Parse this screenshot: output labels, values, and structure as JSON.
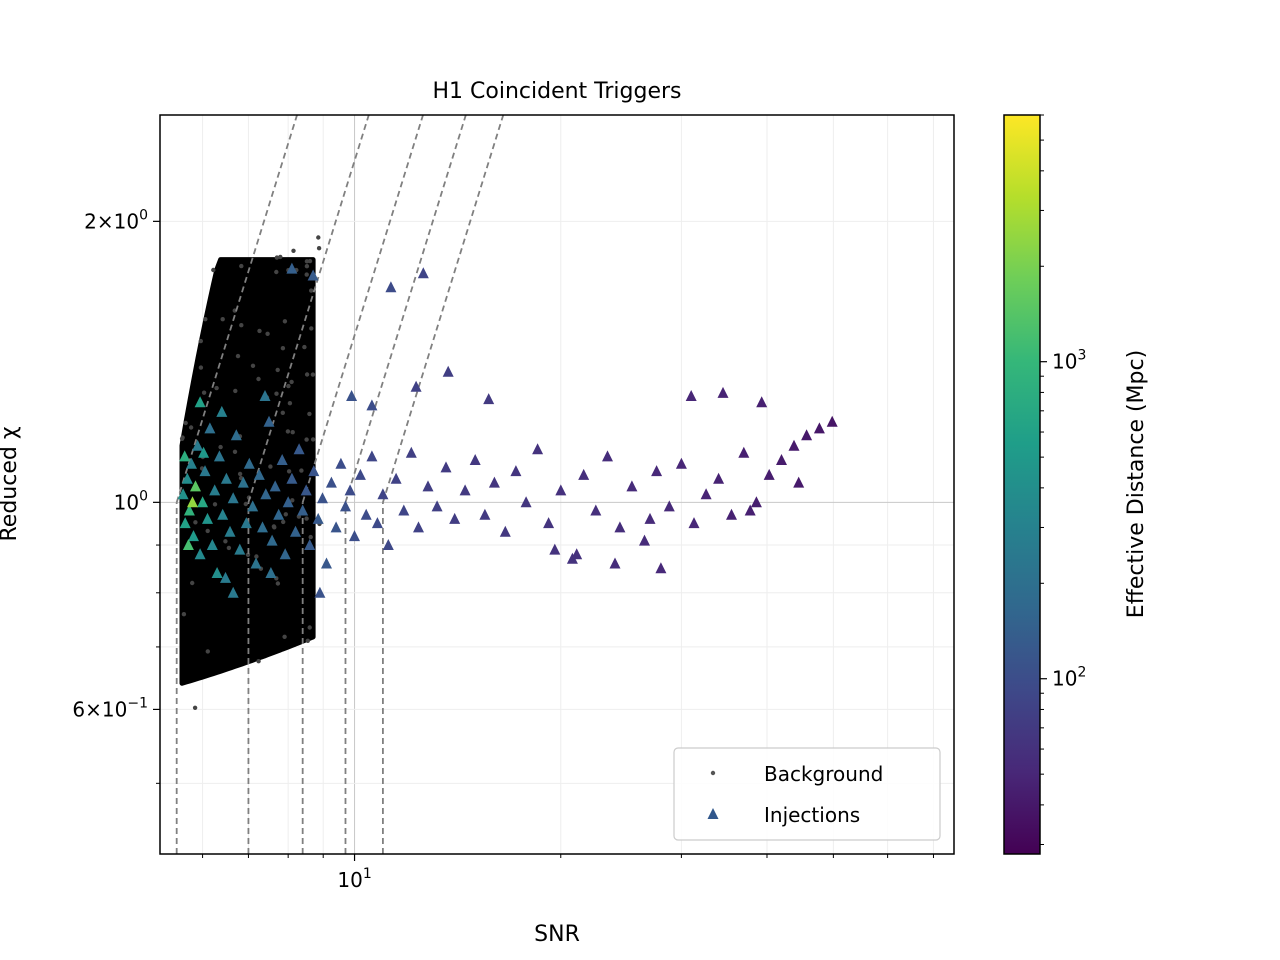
{
  "chart_data": {
    "type": "scatter",
    "title": "H1 Coincident Triggers",
    "xlabel": "SNR",
    "ylabel": "Reduced χ",
    "x_scale": "log",
    "y_scale": "log",
    "xlim": [
      5.2,
      75
    ],
    "ylim": [
      0.42,
      2.6
    ],
    "x_tick_labels": [
      {
        "value": 10,
        "base": "10",
        "exp": "1"
      }
    ],
    "y_tick_labels": [
      {
        "value": 2.0,
        "mant": "2",
        "base": "10",
        "exp": "0"
      },
      {
        "value": 1.0,
        "mant": "",
        "base": "10",
        "exp": "0"
      },
      {
        "value": 0.6,
        "mant": "6",
        "base": "10",
        "exp": "−1"
      }
    ],
    "grid": true,
    "legend_placement": "lower-right",
    "legend": [
      {
        "label": "Background",
        "marker": "dot",
        "color": "#555555"
      },
      {
        "label": "Injections",
        "marker": "triangle",
        "color": "#31578c"
      }
    ],
    "colorbar": {
      "label": "Effective Distance (Mpc)",
      "scale": "log",
      "range": [
        28,
        6000
      ],
      "colormap": [
        "#440154",
        "#482878",
        "#3e4989",
        "#31688e",
        "#26828e",
        "#1f9e89",
        "#35b779",
        "#6ece58",
        "#b5de2b",
        "#fde725"
      ],
      "tick_labels": [
        {
          "value": 100,
          "base": "10",
          "exp": "2"
        },
        {
          "value": 1000,
          "base": "10",
          "exp": "3"
        }
      ]
    },
    "thresholds": {
      "snr_verticals": [
        5.5,
        7.0,
        8.4,
        9.7,
        11.0
      ],
      "reference_y": 1.0
    },
    "background": {
      "snr_range": [
        5.6,
        8.7
      ],
      "chi_range": [
        0.64,
        1.82
      ],
      "color": "#000000"
    },
    "injections": [
      [
        5.62,
        1.02,
        420
      ],
      [
        5.66,
        0.95,
        600
      ],
      [
        5.7,
        1.06,
        380
      ],
      [
        5.74,
        0.98,
        900
      ],
      [
        5.78,
        1.1,
        300
      ],
      [
        5.82,
        0.92,
        520
      ],
      [
        5.86,
        1.04,
        1500
      ],
      [
        5.9,
        1.15,
        260
      ],
      [
        5.95,
        0.88,
        350
      ],
      [
        6.0,
        1.0,
        700
      ],
      [
        6.05,
        1.08,
        240
      ],
      [
        6.1,
        0.96,
        450
      ],
      [
        6.15,
        1.2,
        200
      ],
      [
        6.2,
        0.9,
        330
      ],
      [
        6.25,
        1.03,
        280
      ],
      [
        6.3,
        0.84,
        400
      ],
      [
        6.35,
        1.12,
        220
      ],
      [
        6.42,
        0.97,
        310
      ],
      [
        6.5,
        1.06,
        250
      ],
      [
        6.58,
        0.93,
        270
      ],
      [
        6.65,
        1.01,
        230
      ],
      [
        6.72,
        1.18,
        190
      ],
      [
        6.8,
        0.89,
        260
      ],
      [
        6.88,
        1.05,
        210
      ],
      [
        6.95,
        0.95,
        240
      ],
      [
        7.02,
        1.1,
        180
      ],
      [
        7.1,
        0.99,
        200
      ],
      [
        7.18,
        0.86,
        220
      ],
      [
        7.26,
        1.07,
        170
      ],
      [
        7.34,
        0.94,
        190
      ],
      [
        7.42,
        1.02,
        160
      ],
      [
        7.5,
        1.22,
        150
      ],
      [
        7.58,
        0.91,
        175
      ],
      [
        7.66,
        1.04,
        150
      ],
      [
        7.75,
        0.97,
        165
      ],
      [
        7.84,
        1.11,
        140
      ],
      [
        7.92,
        0.88,
        160
      ],
      [
        8.0,
        1.0,
        145
      ],
      [
        8.1,
        1.06,
        130
      ],
      [
        8.2,
        0.93,
        150
      ],
      [
        8.3,
        1.14,
        125
      ],
      [
        8.4,
        0.98,
        140
      ],
      [
        8.5,
        1.03,
        120
      ],
      [
        8.6,
        0.9,
        130
      ],
      [
        8.72,
        1.08,
        115
      ],
      [
        8.85,
        0.96,
        125
      ],
      [
        8.98,
        1.01,
        110
      ],
      [
        9.1,
        0.86,
        120
      ],
      [
        9.25,
        1.05,
        105
      ],
      [
        9.4,
        0.94,
        115
      ],
      [
        9.55,
        1.1,
        100
      ],
      [
        9.7,
        0.99,
        108
      ],
      [
        9.85,
        1.03,
        95
      ],
      [
        10.0,
        0.92,
        102
      ],
      [
        10.2,
        1.07,
        92
      ],
      [
        10.4,
        0.97,
        98
      ],
      [
        10.6,
        1.12,
        88
      ],
      [
        10.8,
        0.95,
        94
      ],
      [
        11.0,
        1.02,
        85
      ],
      [
        11.2,
        0.9,
        90
      ],
      [
        11.5,
        1.06,
        82
      ],
      [
        11.8,
        0.98,
        86
      ],
      [
        12.1,
        1.13,
        78
      ],
      [
        12.4,
        0.94,
        82
      ],
      [
        12.8,
        1.04,
        75
      ],
      [
        13.2,
        0.99,
        78
      ],
      [
        13.6,
        1.09,
        72
      ],
      [
        14.0,
        0.96,
        74
      ],
      [
        14.5,
        1.03,
        70
      ],
      [
        15.0,
        1.11,
        68
      ],
      [
        15.5,
        0.97,
        70
      ],
      [
        16.0,
        1.05,
        66
      ],
      [
        16.6,
        0.93,
        68
      ],
      [
        17.2,
        1.08,
        64
      ],
      [
        17.8,
        1.0,
        65
      ],
      [
        18.5,
        1.14,
        62
      ],
      [
        19.2,
        0.95,
        63
      ],
      [
        20.0,
        1.03,
        60
      ],
      [
        20.8,
        0.87,
        62
      ],
      [
        21.6,
        1.07,
        58
      ],
      [
        22.5,
        0.98,
        59
      ],
      [
        23.4,
        1.12,
        56
      ],
      [
        24.4,
        0.94,
        57
      ],
      [
        25.4,
        1.04,
        54
      ],
      [
        26.5,
        0.91,
        55
      ],
      [
        27.6,
        1.08,
        52
      ],
      [
        28.8,
        0.99,
        53
      ],
      [
        30.0,
        1.1,
        50
      ],
      [
        31.3,
        0.95,
        51
      ],
      [
        32.6,
        1.02,
        48
      ],
      [
        34.0,
        1.06,
        47
      ],
      [
        35.5,
        0.97,
        46
      ],
      [
        37.0,
        1.13,
        45
      ],
      [
        38.6,
        1.0,
        44
      ],
      [
        40.3,
        1.07,
        43
      ],
      [
        42.0,
        1.11,
        42
      ],
      [
        43.8,
        1.15,
        41
      ],
      [
        45.7,
        1.18,
        40
      ],
      [
        47.7,
        1.2,
        39
      ],
      [
        49.8,
        1.22,
        38
      ],
      [
        8.1,
        1.78,
        140
      ],
      [
        8.7,
        1.75,
        130
      ],
      [
        11.3,
        1.7,
        95
      ],
      [
        12.6,
        1.76,
        85
      ],
      [
        13.7,
        1.38,
        75
      ],
      [
        12.3,
        1.33,
        80
      ],
      [
        9.9,
        1.3,
        110
      ],
      [
        10.6,
        1.27,
        100
      ],
      [
        15.7,
        1.29,
        70
      ],
      [
        31.0,
        1.3,
        50
      ],
      [
        34.5,
        1.31,
        48
      ],
      [
        39.3,
        1.28,
        45
      ],
      [
        6.4,
        1.25,
        300
      ],
      [
        7.4,
        1.3,
        220
      ],
      [
        5.95,
        1.28,
        600
      ],
      [
        6.65,
        0.8,
        250
      ],
      [
        7.55,
        0.84,
        200
      ],
      [
        8.9,
        0.8,
        110
      ],
      [
        24.0,
        0.86,
        56
      ],
      [
        28.0,
        0.85,
        52
      ],
      [
        5.65,
        1.12,
        800
      ],
      [
        5.72,
        0.9,
        1200
      ],
      [
        5.8,
        1.0,
        2500
      ],
      [
        6.02,
        1.13,
        500
      ],
      [
        6.48,
        0.83,
        260
      ],
      [
        21.1,
        0.88,
        60
      ],
      [
        19.6,
        0.89,
        62
      ],
      [
        44.5,
        1.05,
        41
      ],
      [
        37.8,
        0.98,
        45
      ],
      [
        27.0,
        0.96,
        54
      ]
    ]
  }
}
